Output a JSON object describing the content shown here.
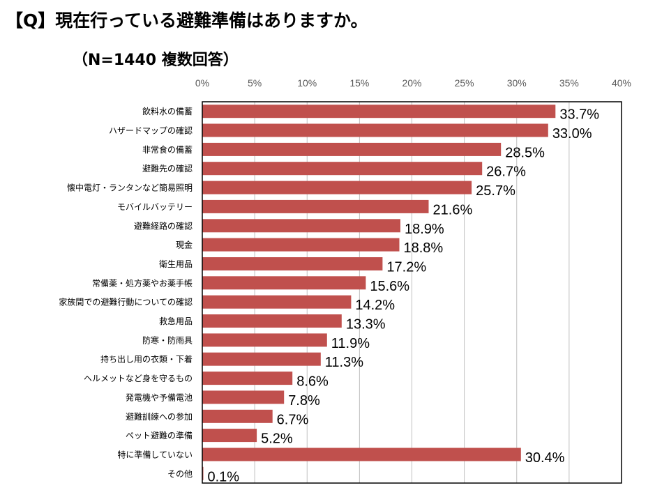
{
  "title": "【Q】現在行っている避難準備はありますか。",
  "subtitle": "（N=1440 複数回答）",
  "chart_data": {
    "type": "bar",
    "orientation": "horizontal",
    "categories": [
      "飲料水の備蓄",
      "ハザードマップの確認",
      "非常食の備蓄",
      "避難先の確認",
      "懐中電灯・ランタンなど簡易照明",
      "モバイルバッテリー",
      "避難経路の確認",
      "現金",
      "衛生用品",
      "常備薬・処方薬やお薬手帳",
      "家族間での避難行動についての確認",
      "救急用品",
      "防寒・防雨具",
      "持ち出し用の衣類・下着",
      "ヘルメットなど身を守るもの",
      "発電機や予備電池",
      "避難訓練への参加",
      "ペット避難の準備",
      "特に準備していない",
      "その他"
    ],
    "values": [
      33.7,
      33.0,
      28.5,
      26.7,
      25.7,
      21.6,
      18.9,
      18.8,
      17.2,
      15.6,
      14.2,
      13.3,
      11.9,
      11.3,
      8.6,
      7.8,
      6.7,
      5.2,
      30.4,
      0.1
    ],
    "data_labels": [
      "33.7%",
      "33.0%",
      "28.5%",
      "26.7%",
      "25.7%",
      "21.6%",
      "18.9%",
      "18.8%",
      "17.2%",
      "15.6%",
      "14.2%",
      "13.3%",
      "11.9%",
      "11.3%",
      "8.6%",
      "7.8%",
      "6.7%",
      "5.2%",
      "30.4%",
      "0.1%"
    ],
    "xlim": [
      0,
      40
    ],
    "ticks": [
      0,
      5,
      10,
      15,
      20,
      25,
      30,
      35,
      40
    ],
    "tick_labels": [
      "0%",
      "5%",
      "10%",
      "15%",
      "20%",
      "25%",
      "30%",
      "35%",
      "40%"
    ],
    "axis_position": "top",
    "grid": true,
    "bar_color": "#c0504d",
    "grid_color": "#bfbfbf",
    "border_color": "#000000"
  }
}
